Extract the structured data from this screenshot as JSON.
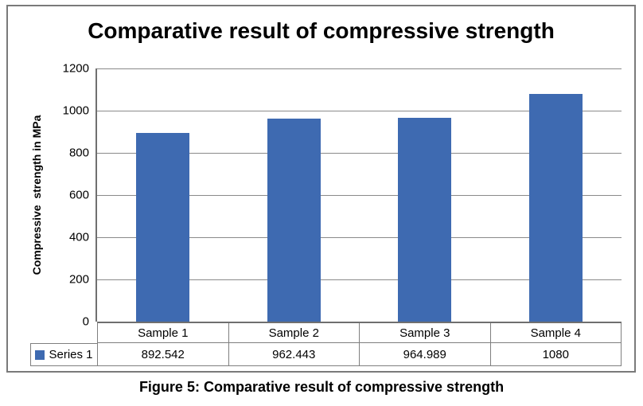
{
  "figure": {
    "caption": "Figure 5: Comparative result of compressive strength"
  },
  "chart_data": {
    "type": "bar",
    "title": "Comparative result of compressive strength",
    "ylabel": "Compressive  strength in MPa",
    "xlabel": "",
    "categories": [
      "Sample 1",
      "Sample 2",
      "Sample 3",
      "Sample 4"
    ],
    "series": [
      {
        "name": "Series 1",
        "values": [
          892.542,
          962.443,
          964.989,
          1080
        ],
        "value_labels": [
          "892.542",
          "962.443",
          "964.989",
          "1080"
        ]
      }
    ],
    "ylim": [
      0,
      1200
    ],
    "ytick_step": 200,
    "yticks": [
      "1200",
      "1000",
      "800",
      "600",
      "400",
      "200",
      "0"
    ],
    "grid": true,
    "gridlines": "horizontal",
    "legend_position": "data-table-left",
    "data_table_shown": true,
    "colors": {
      "bar": "#3e6ab1",
      "gridline": "#8a8a8a",
      "axis": "#6f6f6f",
      "table_border": "#7f7f7f",
      "frame_border": "#7a7a7a",
      "text": "#000000"
    }
  }
}
